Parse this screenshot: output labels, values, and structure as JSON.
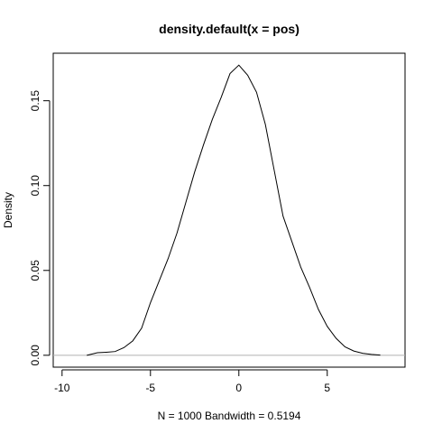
{
  "chart_data": {
    "type": "line",
    "title": "density.default(x = pos)",
    "xlabel": "N = 1000   Bandwidth = 0.5194",
    "ylabel": "Density",
    "xlim": [
      -10.5,
      9.4
    ],
    "ylim": [
      -0.007,
      0.178
    ],
    "x_ticks": [
      -10,
      -5,
      0,
      5
    ],
    "x_tick_labels": [
      "-10",
      "-5",
      "0",
      "5"
    ],
    "y_ticks": [
      0.0,
      0.05,
      0.1,
      0.15
    ],
    "y_tick_labels": [
      "0.00",
      "0.05",
      "0.10",
      "0.15"
    ],
    "grid": false,
    "baseline": 0,
    "series": [
      {
        "x": [
          -8.6,
          -8.0,
          -7.5,
          -7.0,
          -6.5,
          -6.0,
          -5.5,
          -5.0,
          -4.5,
          -4.0,
          -3.5,
          -3.0,
          -2.5,
          -2.0,
          -1.5,
          -1.0,
          -0.5,
          0.0,
          0.5,
          1.0,
          1.5,
          2.0,
          2.5,
          3.0,
          3.5,
          4.0,
          4.5,
          5.0,
          5.5,
          6.0,
          6.5,
          7.0,
          7.5,
          8.0
        ],
        "y": [
          0.0,
          0.0015,
          0.0018,
          0.0022,
          0.0045,
          0.0085,
          0.016,
          0.031,
          0.044,
          0.057,
          0.072,
          0.09,
          0.108,
          0.124,
          0.139,
          0.152,
          0.166,
          0.171,
          0.165,
          0.155,
          0.136,
          0.109,
          0.082,
          0.067,
          0.052,
          0.04,
          0.027,
          0.017,
          0.01,
          0.005,
          0.0025,
          0.0012,
          0.0005,
          0.0001
        ]
      }
    ]
  }
}
